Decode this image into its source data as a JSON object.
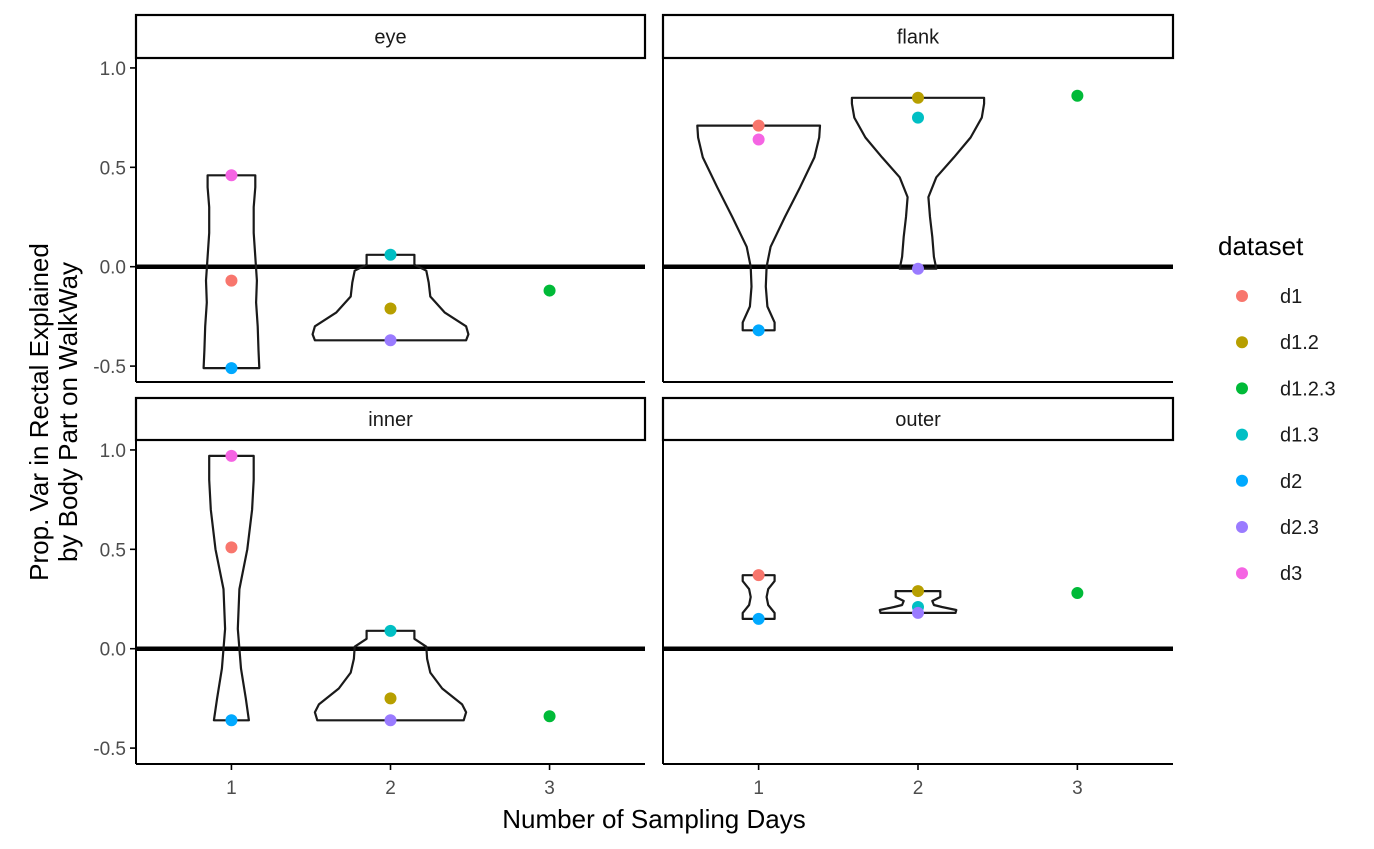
{
  "chart_data": {
    "type": "violin",
    "xlabel": "Number of Sampling Days",
    "ylabel_lines": [
      "Prop. Var in Rectal Explained",
      "by Body Part on WalkWay"
    ],
    "x_ticks": [
      "1",
      "2",
      "3"
    ],
    "y_ticks": [
      "1.0",
      "0.5",
      "0.0",
      "-0.5"
    ],
    "y_tick_values": [
      1.0,
      0.5,
      0.0,
      -0.5
    ],
    "ylim": [
      -0.58,
      1.05
    ],
    "xlim": [
      0.4,
      3.6
    ],
    "hline": 0,
    "legend": {
      "title": "dataset",
      "position": "right",
      "entries": [
        {
          "name": "d1",
          "color": "#F8766D"
        },
        {
          "name": "d1.2",
          "color": "#B79F00"
        },
        {
          "name": "d1.2.3",
          "color": "#00BA38"
        },
        {
          "name": "d1.3",
          "color": "#00BFC4"
        },
        {
          "name": "d2",
          "color": "#00A9FF"
        },
        {
          "name": "d2.3",
          "color": "#9A7BFF"
        },
        {
          "name": "d3",
          "color": "#F564E3"
        }
      ]
    },
    "panels": [
      {
        "label": "eye",
        "points": [
          {
            "x": 1,
            "y": 0.46,
            "dataset": "d3"
          },
          {
            "x": 1,
            "y": -0.07,
            "dataset": "d1"
          },
          {
            "x": 1,
            "y": -0.51,
            "dataset": "d2"
          },
          {
            "x": 2,
            "y": 0.06,
            "dataset": "d1.3"
          },
          {
            "x": 2,
            "y": -0.21,
            "dataset": "d1.2"
          },
          {
            "x": 2,
            "y": -0.37,
            "dataset": "d2.3"
          },
          {
            "x": 3,
            "y": -0.12,
            "dataset": "d1.2.3"
          }
        ],
        "violins": [
          {
            "x": 1,
            "ymin": -0.51,
            "ymax": 0.46,
            "profile": [
              [
                -0.51,
                0.35
              ],
              [
                -0.42,
                0.34
              ],
              [
                -0.3,
                0.33
              ],
              [
                -0.18,
                0.31
              ],
              [
                -0.07,
                0.32
              ],
              [
                0.05,
                0.3
              ],
              [
                0.17,
                0.28
              ],
              [
                0.3,
                0.28
              ],
              [
                0.4,
                0.3
              ],
              [
                0.46,
                0.3
              ]
            ]
          },
          {
            "x": 2,
            "ymin": -0.37,
            "ymax": 0.06,
            "profile": [
              [
                -0.37,
                0.95
              ],
              [
                -0.34,
                0.98
              ],
              [
                -0.3,
                0.95
              ],
              [
                -0.23,
                0.68
              ],
              [
                -0.15,
                0.5
              ],
              [
                -0.08,
                0.48
              ],
              [
                -0.02,
                0.45
              ],
              [
                0.01,
                0.3
              ],
              [
                0.06,
                0.3
              ]
            ]
          }
        ]
      },
      {
        "label": "flank",
        "points": [
          {
            "x": 1,
            "y": 0.71,
            "dataset": "d1"
          },
          {
            "x": 1,
            "y": 0.64,
            "dataset": "d3"
          },
          {
            "x": 1,
            "y": -0.32,
            "dataset": "d2"
          },
          {
            "x": 2,
            "y": 0.85,
            "dataset": "d1.2"
          },
          {
            "x": 2,
            "y": 0.75,
            "dataset": "d1.3"
          },
          {
            "x": 2,
            "y": -0.01,
            "dataset": "d2.3"
          },
          {
            "x": 3,
            "y": 0.86,
            "dataset": "d1.2.3"
          }
        ],
        "violins": [
          {
            "x": 1,
            "ymin": -0.32,
            "ymax": 0.71,
            "profile": [
              [
                -0.32,
                0.2
              ],
              [
                -0.28,
                0.2
              ],
              [
                -0.2,
                0.11
              ],
              [
                -0.1,
                0.09
              ],
              [
                0.0,
                0.1
              ],
              [
                0.1,
                0.15
              ],
              [
                0.25,
                0.33
              ],
              [
                0.4,
                0.52
              ],
              [
                0.55,
                0.7
              ],
              [
                0.65,
                0.76
              ],
              [
                0.71,
                0.77
              ]
            ]
          },
          {
            "x": 2,
            "ymin": -0.01,
            "ymax": 0.85,
            "profile": [
              [
                -0.01,
                0.23
              ],
              [
                0.05,
                0.2
              ],
              [
                0.15,
                0.18
              ],
              [
                0.25,
                0.15
              ],
              [
                0.35,
                0.13
              ],
              [
                0.45,
                0.23
              ],
              [
                0.55,
                0.45
              ],
              [
                0.65,
                0.66
              ],
              [
                0.75,
                0.8
              ],
              [
                0.82,
                0.83
              ],
              [
                0.85,
                0.83
              ]
            ]
          }
        ]
      },
      {
        "label": "inner",
        "points": [
          {
            "x": 1,
            "y": 0.97,
            "dataset": "d3"
          },
          {
            "x": 1,
            "y": 0.51,
            "dataset": "d1"
          },
          {
            "x": 1,
            "y": -0.36,
            "dataset": "d2"
          },
          {
            "x": 2,
            "y": 0.09,
            "dataset": "d1.3"
          },
          {
            "x": 2,
            "y": -0.25,
            "dataset": "d1.2"
          },
          {
            "x": 2,
            "y": -0.36,
            "dataset": "d2.3"
          },
          {
            "x": 3,
            "y": -0.34,
            "dataset": "d1.2.3"
          }
        ],
        "violins": [
          {
            "x": 1,
            "ymin": -0.36,
            "ymax": 0.97,
            "profile": [
              [
                -0.36,
                0.22
              ],
              [
                -0.25,
                0.18
              ],
              [
                -0.1,
                0.12
              ],
              [
                0.1,
                0.08
              ],
              [
                0.3,
                0.1
              ],
              [
                0.5,
                0.2
              ],
              [
                0.7,
                0.26
              ],
              [
                0.85,
                0.28
              ],
              [
                0.97,
                0.28
              ]
            ]
          },
          {
            "x": 2,
            "ymin": -0.36,
            "ymax": 0.09,
            "profile": [
              [
                -0.36,
                0.92
              ],
              [
                -0.32,
                0.95
              ],
              [
                -0.28,
                0.9
              ],
              [
                -0.2,
                0.65
              ],
              [
                -0.12,
                0.5
              ],
              [
                -0.05,
                0.46
              ],
              [
                0.01,
                0.45
              ],
              [
                0.05,
                0.3
              ],
              [
                0.09,
                0.3
              ]
            ]
          }
        ]
      },
      {
        "label": "outer",
        "points": [
          {
            "x": 1,
            "y": 0.37,
            "dataset": "d1"
          },
          {
            "x": 1,
            "y": 0.15,
            "dataset": "d2"
          },
          {
            "x": 2,
            "y": 0.29,
            "dataset": "d1.2"
          },
          {
            "x": 2,
            "y": 0.21,
            "dataset": "d1.3"
          },
          {
            "x": 2,
            "y": 0.18,
            "dataset": "d2.3"
          },
          {
            "x": 3,
            "y": 0.28,
            "dataset": "d1.2.3"
          }
        ],
        "violins": [
          {
            "x": 1,
            "ymin": 0.15,
            "ymax": 0.37,
            "profile": [
              [
                0.15,
                0.2
              ],
              [
                0.18,
                0.2
              ],
              [
                0.22,
                0.12
              ],
              [
                0.26,
                0.1
              ],
              [
                0.3,
                0.12
              ],
              [
                0.34,
                0.2
              ],
              [
                0.37,
                0.2
              ]
            ]
          },
          {
            "x": 2,
            "ymin": 0.18,
            "ymax": 0.29,
            "profile": [
              [
                0.18,
                0.47
              ],
              [
                0.195,
                0.48
              ],
              [
                0.21,
                0.3
              ],
              [
                0.22,
                0.2
              ],
              [
                0.24,
                0.18
              ],
              [
                0.26,
                0.28
              ],
              [
                0.29,
                0.28
              ]
            ]
          }
        ]
      }
    ]
  }
}
